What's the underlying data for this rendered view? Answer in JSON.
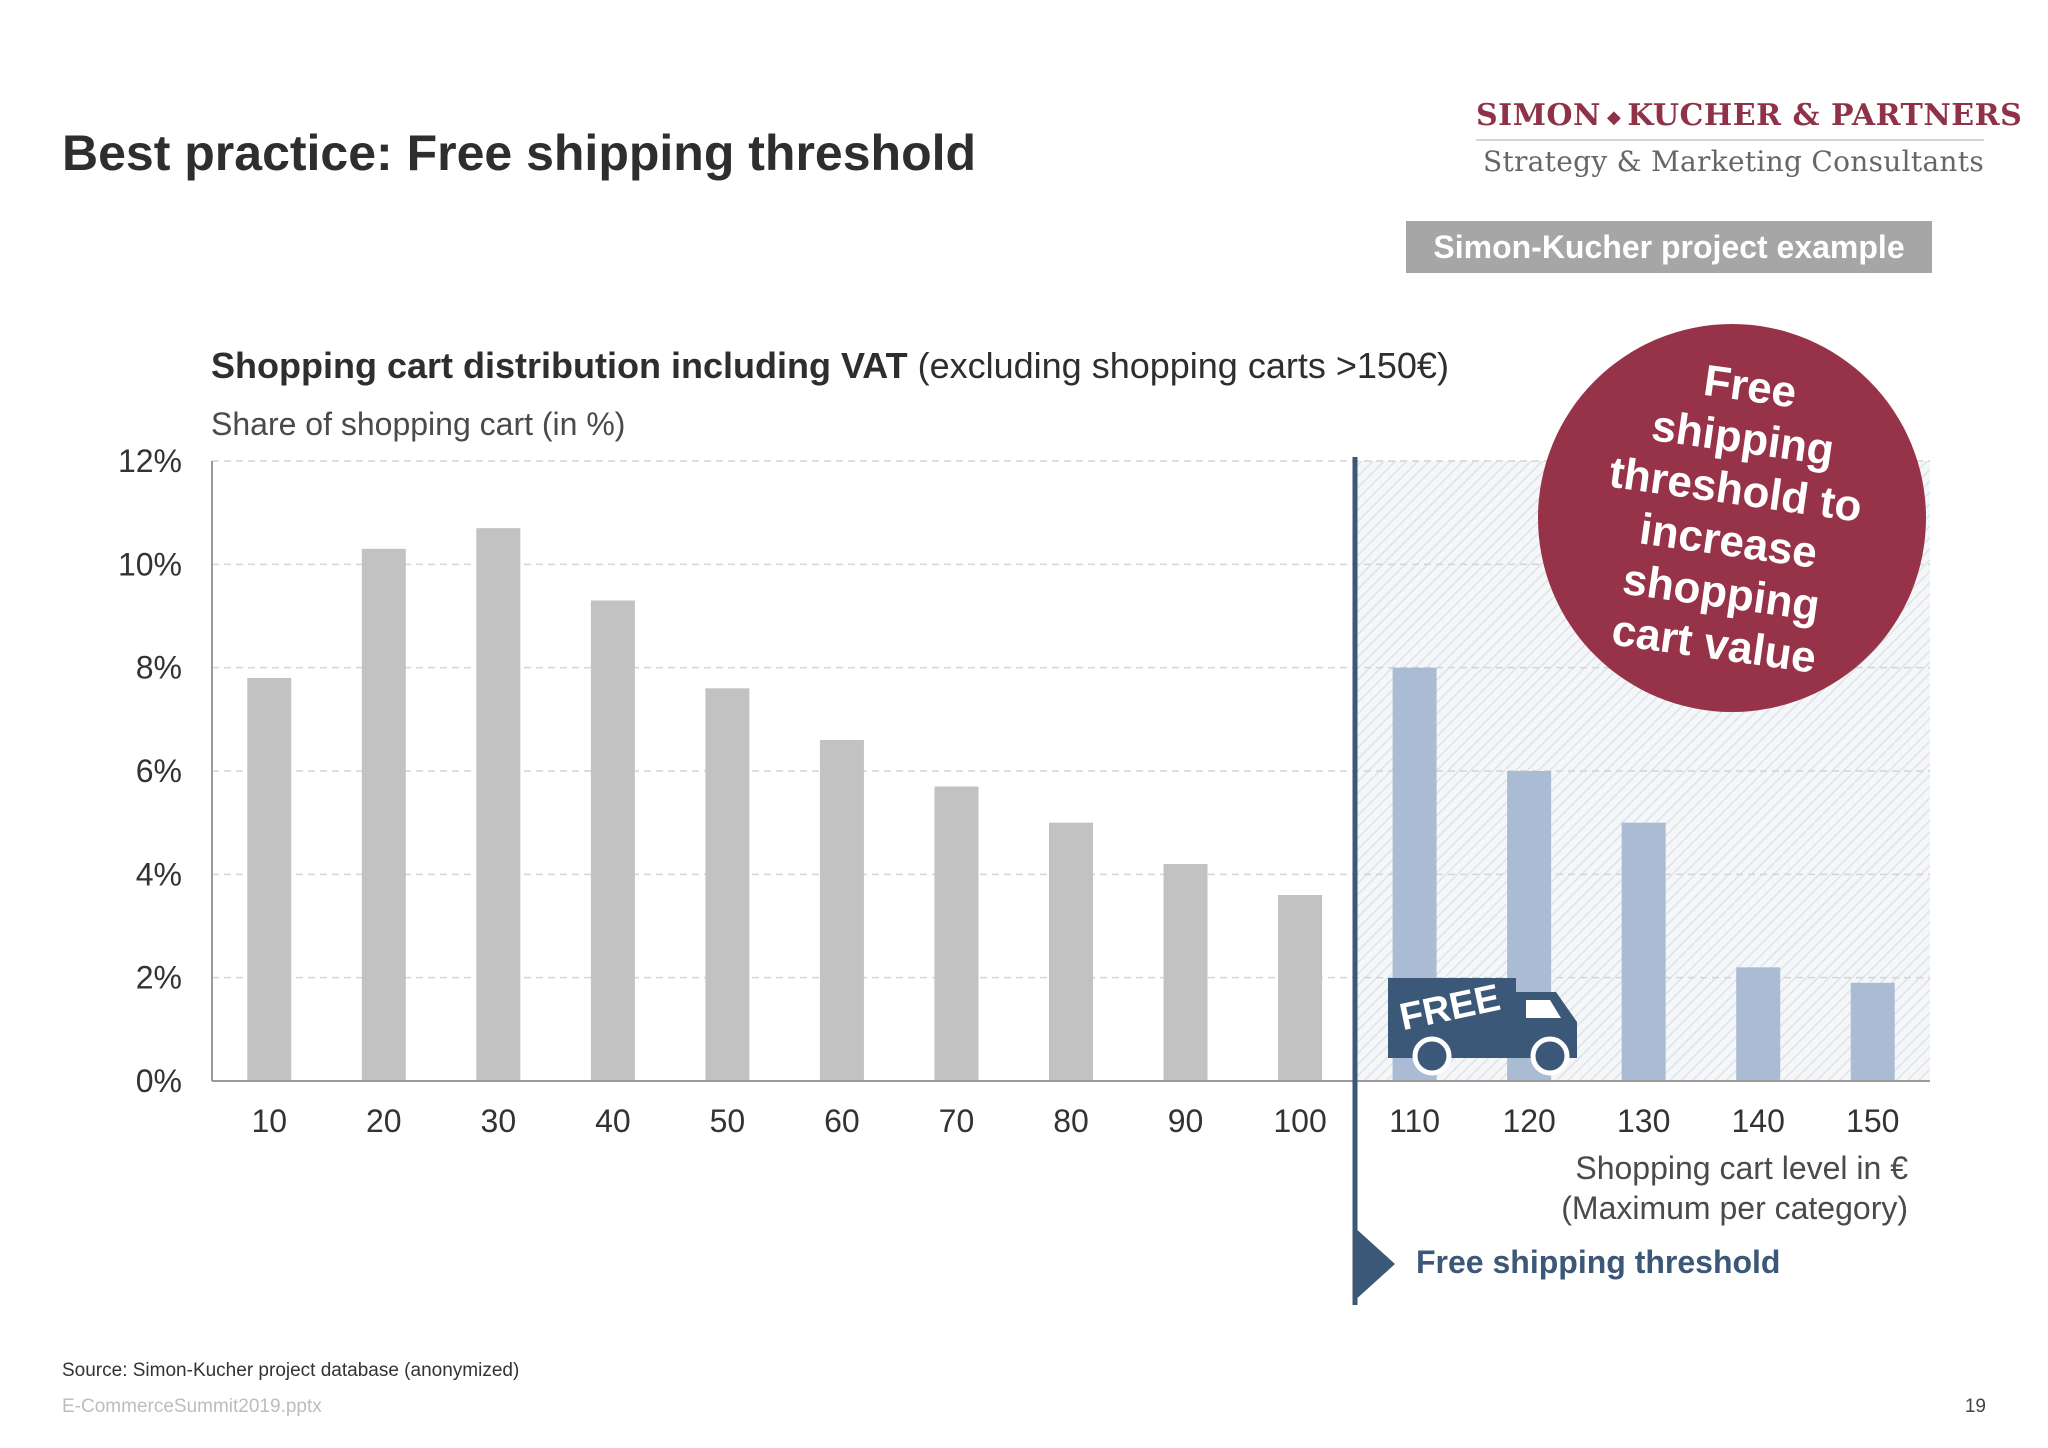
{
  "slide": {
    "title": "Best practice: Free shipping threshold",
    "logo_top_left": "SIMON",
    "logo_top_right": "KUCHER & PARTNERS",
    "logo_bottom": "Strategy & Marketing Consultants",
    "example_badge": "Simon-Kucher project example",
    "source": "Source: Simon-Kucher project database (anonymized)",
    "filename": "E-CommerceSummit2019.pptx",
    "page_number": "19"
  },
  "callouts": {
    "circle_lines": [
      "Free",
      "shipping",
      "threshold to",
      "increase",
      "shopping",
      "cart value"
    ],
    "truck_label": "FREE",
    "threshold_label": "Free shipping threshold"
  },
  "colors": {
    "below_threshold_bar": "#c3c2c3",
    "above_threshold_bar": "#a9bcd4",
    "threshold_line": "#3c5878",
    "circle": "#973349",
    "truck": "#3c5878"
  },
  "chart_data": {
    "type": "bar",
    "title_bold": "Shopping cart distribution including VAT",
    "title_rest": " (excluding shopping carts >150€)",
    "ylabel": "Share of shopping cart (in %)",
    "xlabel_line1": "Shopping cart level in €",
    "xlabel_line2": "(Maximum per category)",
    "categories": [
      "10",
      "20",
      "30",
      "40",
      "50",
      "60",
      "70",
      "80",
      "90",
      "100",
      "110",
      "120",
      "130",
      "140",
      "150"
    ],
    "values": [
      7.8,
      10.3,
      10.7,
      9.3,
      7.6,
      6.6,
      5.7,
      5.0,
      4.2,
      3.6,
      8.0,
      6.0,
      5.0,
      2.2,
      1.9
    ],
    "ylim": [
      0,
      12
    ],
    "yticks": [
      0,
      2,
      4,
      6,
      8,
      10,
      12
    ],
    "ytick_labels": [
      "0%",
      "2%",
      "4%",
      "6%",
      "8%",
      "10%",
      "12%"
    ],
    "threshold_after_category": "100",
    "grid": true
  }
}
